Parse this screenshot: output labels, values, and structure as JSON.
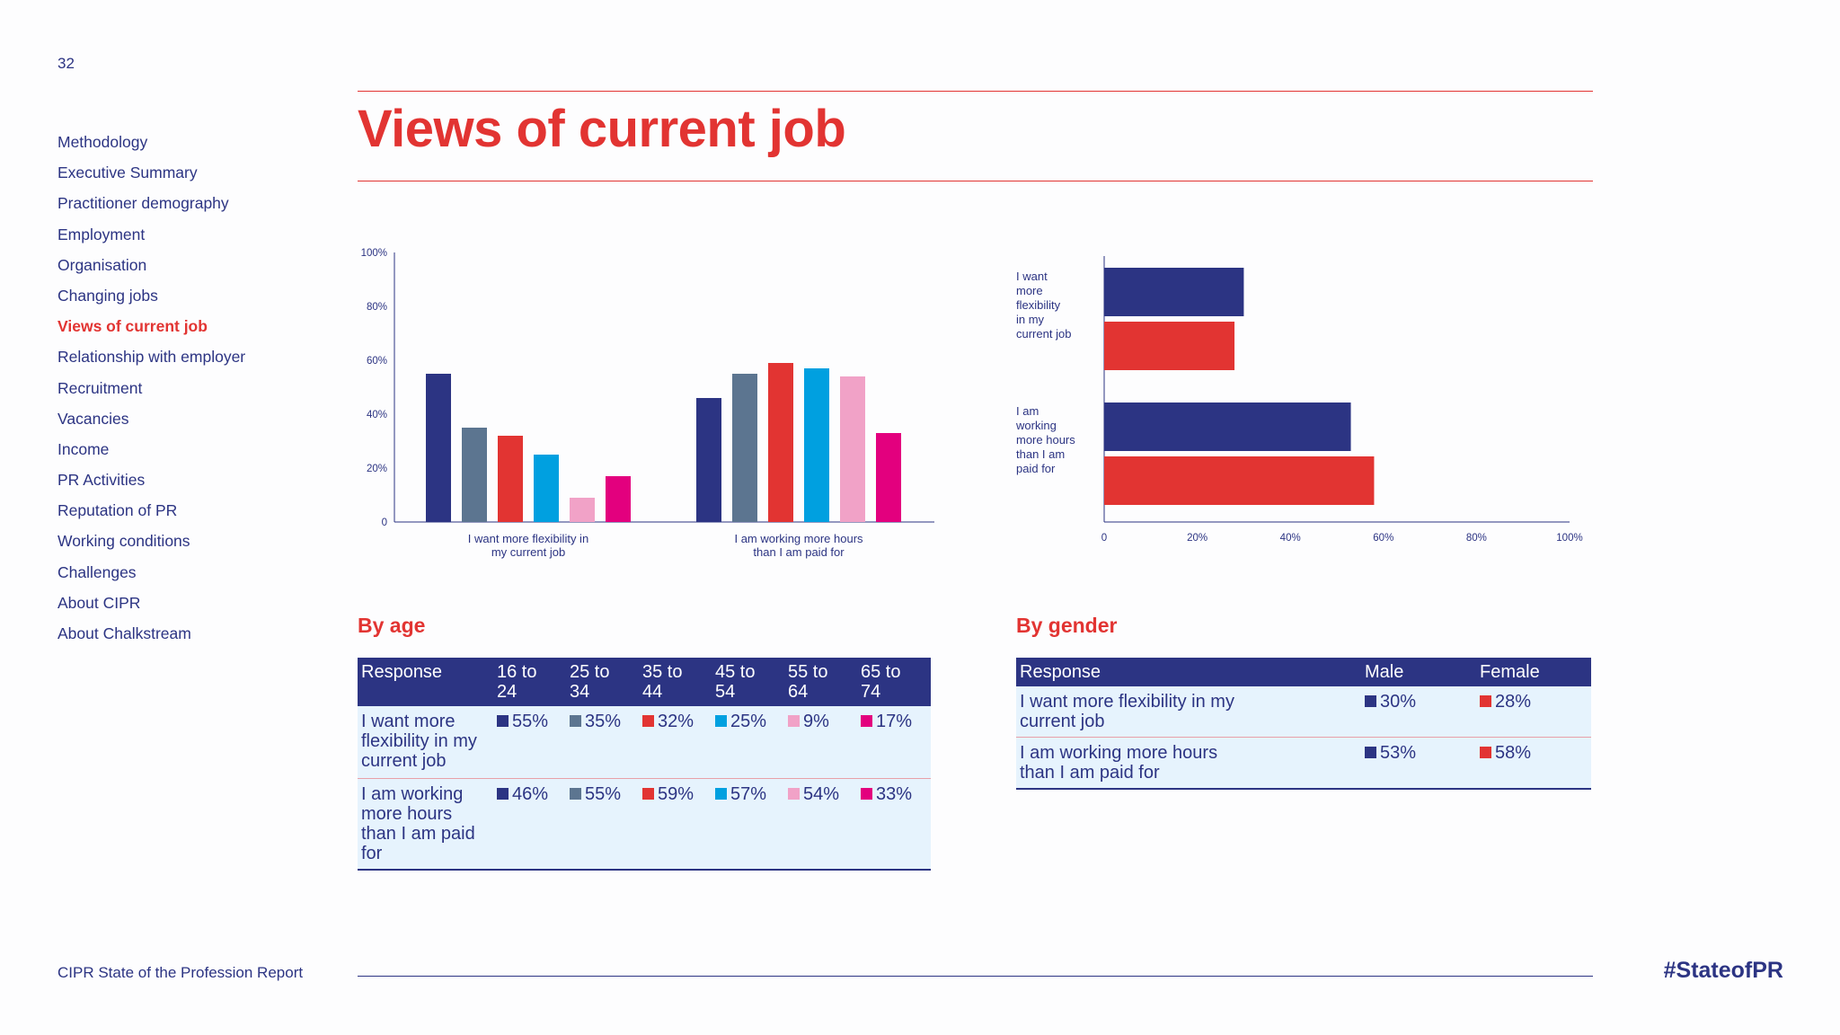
{
  "page_number": "32",
  "title": "Views of current job",
  "sidebar": {
    "items": [
      {
        "label": "Methodology",
        "active": false
      },
      {
        "label": "Executive Summary",
        "active": false
      },
      {
        "label": "Practitioner demography",
        "active": false
      },
      {
        "label": "Employment",
        "active": false
      },
      {
        "label": "Organisation",
        "active": false
      },
      {
        "label": "Changing jobs",
        "active": false
      },
      {
        "label": "Views of current job",
        "active": true
      },
      {
        "label": "Relationship with employer",
        "active": false
      },
      {
        "label": "Recruitment",
        "active": false
      },
      {
        "label": "Vacancies",
        "active": false
      },
      {
        "label": "Income",
        "active": false
      },
      {
        "label": "PR Activities",
        "active": false
      },
      {
        "label": "Reputation of PR",
        "active": false
      },
      {
        "label": "Working conditions",
        "active": false
      },
      {
        "label": "Challenges",
        "active": false
      },
      {
        "label": "About CIPR",
        "active": false
      },
      {
        "label": "About Chalkstream",
        "active": false
      }
    ]
  },
  "colors": {
    "navy": "#2c3483",
    "red": "#e23432",
    "slate": "#5c7590",
    "cyan": "#00a0e0",
    "pink": "#f1a2c7",
    "magenta": "#e3007e"
  },
  "chart_data": [
    {
      "type": "bar",
      "categories": [
        [
          "I want more flexibility in",
          "my current job"
        ],
        [
          "I am working more hours",
          "than I am paid for"
        ]
      ],
      "series": [
        {
          "name": "16 to 24",
          "color": "#2c3483",
          "values": [
            55,
            46
          ]
        },
        {
          "name": "25 to 34",
          "color": "#5c7590",
          "values": [
            35,
            55
          ]
        },
        {
          "name": "35 to 44",
          "color": "#e23432",
          "values": [
            32,
            59
          ]
        },
        {
          "name": "45 to 54",
          "color": "#00a0e0",
          "values": [
            25,
            57
          ]
        },
        {
          "name": "55 to 64",
          "color": "#f1a2c7",
          "values": [
            9,
            54
          ]
        },
        {
          "name": "65 to 74",
          "color": "#e3007e",
          "values": [
            17,
            33
          ]
        }
      ],
      "y_ticks": [
        "0",
        "20%",
        "40%",
        "60%",
        "80%",
        "100%"
      ],
      "ylim": [
        0,
        100
      ]
    },
    {
      "type": "bar",
      "orientation": "horizontal",
      "categories": [
        [
          "I want",
          "more",
          "flexibility",
          "in my",
          "current job"
        ],
        [
          "I am",
          "working",
          "more hours",
          "than I am",
          "paid for"
        ]
      ],
      "series": [
        {
          "name": "Male",
          "color": "#2c3483",
          "values": [
            30,
            53
          ]
        },
        {
          "name": "Female",
          "color": "#e23432",
          "values": [
            28,
            58
          ]
        }
      ],
      "x_ticks": [
        "0",
        "20%",
        "40%",
        "60%",
        "80%",
        "100%"
      ],
      "xlim": [
        0,
        100
      ]
    }
  ],
  "age_table": {
    "heading": "By age",
    "columns": [
      [
        "Response"
      ],
      [
        "16 to",
        "24"
      ],
      [
        "25 to",
        "34"
      ],
      [
        "35 to",
        "44"
      ],
      [
        "45 to",
        "54"
      ],
      [
        "55 to",
        "64"
      ],
      [
        "65 to",
        "74"
      ]
    ],
    "rows": [
      {
        "response": [
          "I want more",
          "flexibility in my",
          "current job"
        ],
        "values": [
          "55%",
          "35%",
          "32%",
          "25%",
          "9%",
          "17%"
        ]
      },
      {
        "response": [
          "I am working",
          "more hours",
          "than I am paid",
          "for"
        ],
        "values": [
          "46%",
          "55%",
          "59%",
          "57%",
          "54%",
          "33%"
        ]
      }
    ]
  },
  "gender_table": {
    "heading": "By gender",
    "columns": [
      "Response",
      "Male",
      "Female"
    ],
    "rows": [
      {
        "response": [
          "I want more flexibility in my",
          "current job"
        ],
        "values": [
          "30%",
          "28%"
        ]
      },
      {
        "response": [
          "I am working more hours",
          "than I am paid for"
        ],
        "values": [
          "53%",
          "58%"
        ]
      }
    ]
  },
  "footer": {
    "report_name": "CIPR State of the Profession Report",
    "hashtag": "#StateofPR"
  }
}
